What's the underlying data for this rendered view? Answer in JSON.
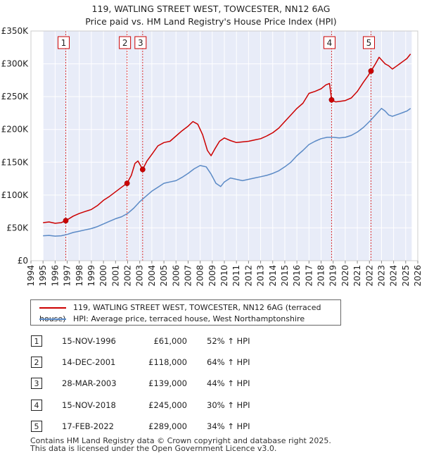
{
  "chart_data": {
    "type": "line",
    "title": "119, WATLING STREET WEST, TOWCESTER, NN12 6AG",
    "subtitle": "Price paid vs. HM Land Registry's House Price Index (HPI)",
    "xlim": [
      1994,
      2026
    ],
    "ylim": [
      0,
      350000
    ],
    "x_ticks": [
      1994,
      1995,
      1996,
      1997,
      1998,
      1999,
      2000,
      2001,
      2002,
      2003,
      2004,
      2005,
      2006,
      2007,
      2008,
      2009,
      2010,
      2011,
      2012,
      2013,
      2014,
      2015,
      2016,
      2017,
      2018,
      2019,
      2020,
      2021,
      2022,
      2023,
      2024,
      2025,
      2026
    ],
    "x_tick_labels": [
      "1994",
      "1995",
      "1996",
      "1997",
      "1998",
      "1999",
      "2000",
      "2001",
      "2002",
      "2003",
      "2004",
      "2005",
      "2006",
      "2007",
      "2008",
      "2009",
      "2010",
      "2011",
      "2012",
      "2013",
      "2014",
      "2015",
      "2016",
      "2017",
      "2018",
      "2019",
      "2020",
      "2021",
      "2022",
      "2023",
      "2024",
      "2025",
      "2026"
    ],
    "y_ticks": [
      0,
      50000,
      100000,
      150000,
      200000,
      250000,
      300000,
      350000
    ],
    "y_tick_labels": [
      "£0",
      "£50K",
      "£100K",
      "£150K",
      "£200K",
      "£250K",
      "£300K",
      "£350K"
    ],
    "series": [
      {
        "name": "119, WATLING STREET WEST, TOWCESTER, NN12 6AG (terraced house)",
        "color": "#cc0000",
        "x": [
          1995.0,
          1995.5,
          1996.0,
          1996.5,
          1996.88,
          1997.5,
          1998.0,
          1998.5,
          1999.0,
          1999.5,
          2000.0,
          2000.5,
          2001.0,
          2001.5,
          2001.95,
          2002.3,
          2002.6,
          2002.85,
          2003.24,
          2003.6,
          2004.0,
          2004.5,
          2005.0,
          2005.5,
          2006.0,
          2006.5,
          2007.0,
          2007.4,
          2007.8,
          2008.2,
          2008.6,
          2008.9,
          2009.2,
          2009.6,
          2010.0,
          2010.5,
          2011.0,
          2011.5,
          2012.0,
          2012.5,
          2013.0,
          2013.5,
          2014.0,
          2014.5,
          2015.0,
          2015.5,
          2016.0,
          2016.5,
          2017.0,
          2017.5,
          2018.0,
          2018.4,
          2018.7,
          2018.87,
          2019.2,
          2019.6,
          2020.0,
          2020.5,
          2021.0,
          2021.5,
          2021.9,
          2022.13,
          2022.5,
          2022.8,
          2023.0,
          2023.3,
          2023.6,
          2023.9,
          2024.2,
          2024.5,
          2024.8,
          2025.1,
          2025.4
        ],
        "values": [
          58000,
          59000,
          57000,
          58000,
          61000,
          68000,
          72000,
          75000,
          78000,
          84000,
          92000,
          98000,
          105000,
          112000,
          118000,
          130000,
          148000,
          152000,
          139000,
          152000,
          162000,
          175000,
          180000,
          182000,
          190000,
          198000,
          205000,
          212000,
          208000,
          192000,
          168000,
          160000,
          170000,
          182000,
          187000,
          183000,
          180000,
          181000,
          182000,
          184000,
          186000,
          190000,
          195000,
          202000,
          212000,
          222000,
          232000,
          240000,
          255000,
          258000,
          262000,
          268000,
          270000,
          245000,
          242000,
          243000,
          244000,
          248000,
          258000,
          272000,
          282000,
          289000,
          300000,
          310000,
          306000,
          300000,
          297000,
          292000,
          296000,
          300000,
          304000,
          308000,
          315000
        ]
      },
      {
        "name": "HPI: Average price, terraced house, West Northamptonshire",
        "color": "#5b8ac6",
        "x": [
          1995.0,
          1995.5,
          1996.0,
          1996.5,
          1997.0,
          1997.5,
          1998.0,
          1998.5,
          1999.0,
          1999.5,
          2000.0,
          2000.5,
          2001.0,
          2001.5,
          2002.0,
          2002.5,
          2003.0,
          2003.5,
          2004.0,
          2004.5,
          2005.0,
          2005.5,
          2006.0,
          2006.5,
          2007.0,
          2007.5,
          2008.0,
          2008.5,
          2008.9,
          2009.3,
          2009.7,
          2010.0,
          2010.5,
          2011.0,
          2011.5,
          2012.0,
          2012.5,
          2013.0,
          2013.5,
          2014.0,
          2014.5,
          2015.0,
          2015.5,
          2016.0,
          2016.5,
          2017.0,
          2017.5,
          2018.0,
          2018.5,
          2019.0,
          2019.5,
          2020.0,
          2020.5,
          2021.0,
          2021.5,
          2022.0,
          2022.5,
          2023.0,
          2023.3,
          2023.6,
          2023.9,
          2024.2,
          2024.5,
          2024.8,
          2025.1,
          2025.4
        ],
        "values": [
          38000,
          38500,
          37500,
          38000,
          40000,
          43000,
          45000,
          47000,
          49000,
          52000,
          56000,
          60000,
          64000,
          67000,
          72000,
          80000,
          90000,
          98000,
          106000,
          112000,
          118000,
          120000,
          122000,
          127000,
          133000,
          140000,
          145000,
          143000,
          132000,
          118000,
          113000,
          120000,
          126000,
          124000,
          122000,
          124000,
          126000,
          128000,
          130000,
          133000,
          137000,
          143000,
          150000,
          160000,
          168000,
          177000,
          182000,
          186000,
          188000,
          188000,
          187000,
          188000,
          191000,
          196000,
          203000,
          212000,
          222000,
          232000,
          228000,
          222000,
          220000,
          222000,
          224000,
          226000,
          228000,
          232000
        ]
      }
    ],
    "sales": [
      {
        "label": "1",
        "x": 1996.88,
        "value": 61000
      },
      {
        "label": "2",
        "x": 2001.95,
        "value": 118000
      },
      {
        "label": "3",
        "x": 2003.24,
        "value": 139000
      },
      {
        "label": "4",
        "x": 2018.87,
        "value": 245000
      },
      {
        "label": "5",
        "x": 2022.13,
        "value": 289000
      }
    ],
    "shaded_range": [
      1995.0,
      2025.5
    ]
  },
  "legend": {
    "property_label": "119, WATLING STREET WEST, TOWCESTER, NN12 6AG (terraced house)",
    "hpi_label": "HPI: Average price, terraced house, West Northamptonshire",
    "property_color": "#cc0000",
    "hpi_color": "#5b8ac6"
  },
  "table": [
    {
      "num": "1",
      "date": "15-NOV-1996",
      "price": "£61,000",
      "hpi": "52% ↑ HPI"
    },
    {
      "num": "2",
      "date": "14-DEC-2001",
      "price": "£118,000",
      "hpi": "64% ↑ HPI"
    },
    {
      "num": "3",
      "date": "28-MAR-2003",
      "price": "£139,000",
      "hpi": "44% ↑ HPI"
    },
    {
      "num": "4",
      "date": "15-NOV-2018",
      "price": "£245,000",
      "hpi": "30% ↑ HPI"
    },
    {
      "num": "5",
      "date": "17-FEB-2022",
      "price": "£289,000",
      "hpi": "34% ↑ HPI"
    }
  ],
  "footer": {
    "line1": "Contains HM Land Registry data © Crown copyright and database right 2025.",
    "line2": "This data is licensed under the Open Government Licence v3.0."
  }
}
